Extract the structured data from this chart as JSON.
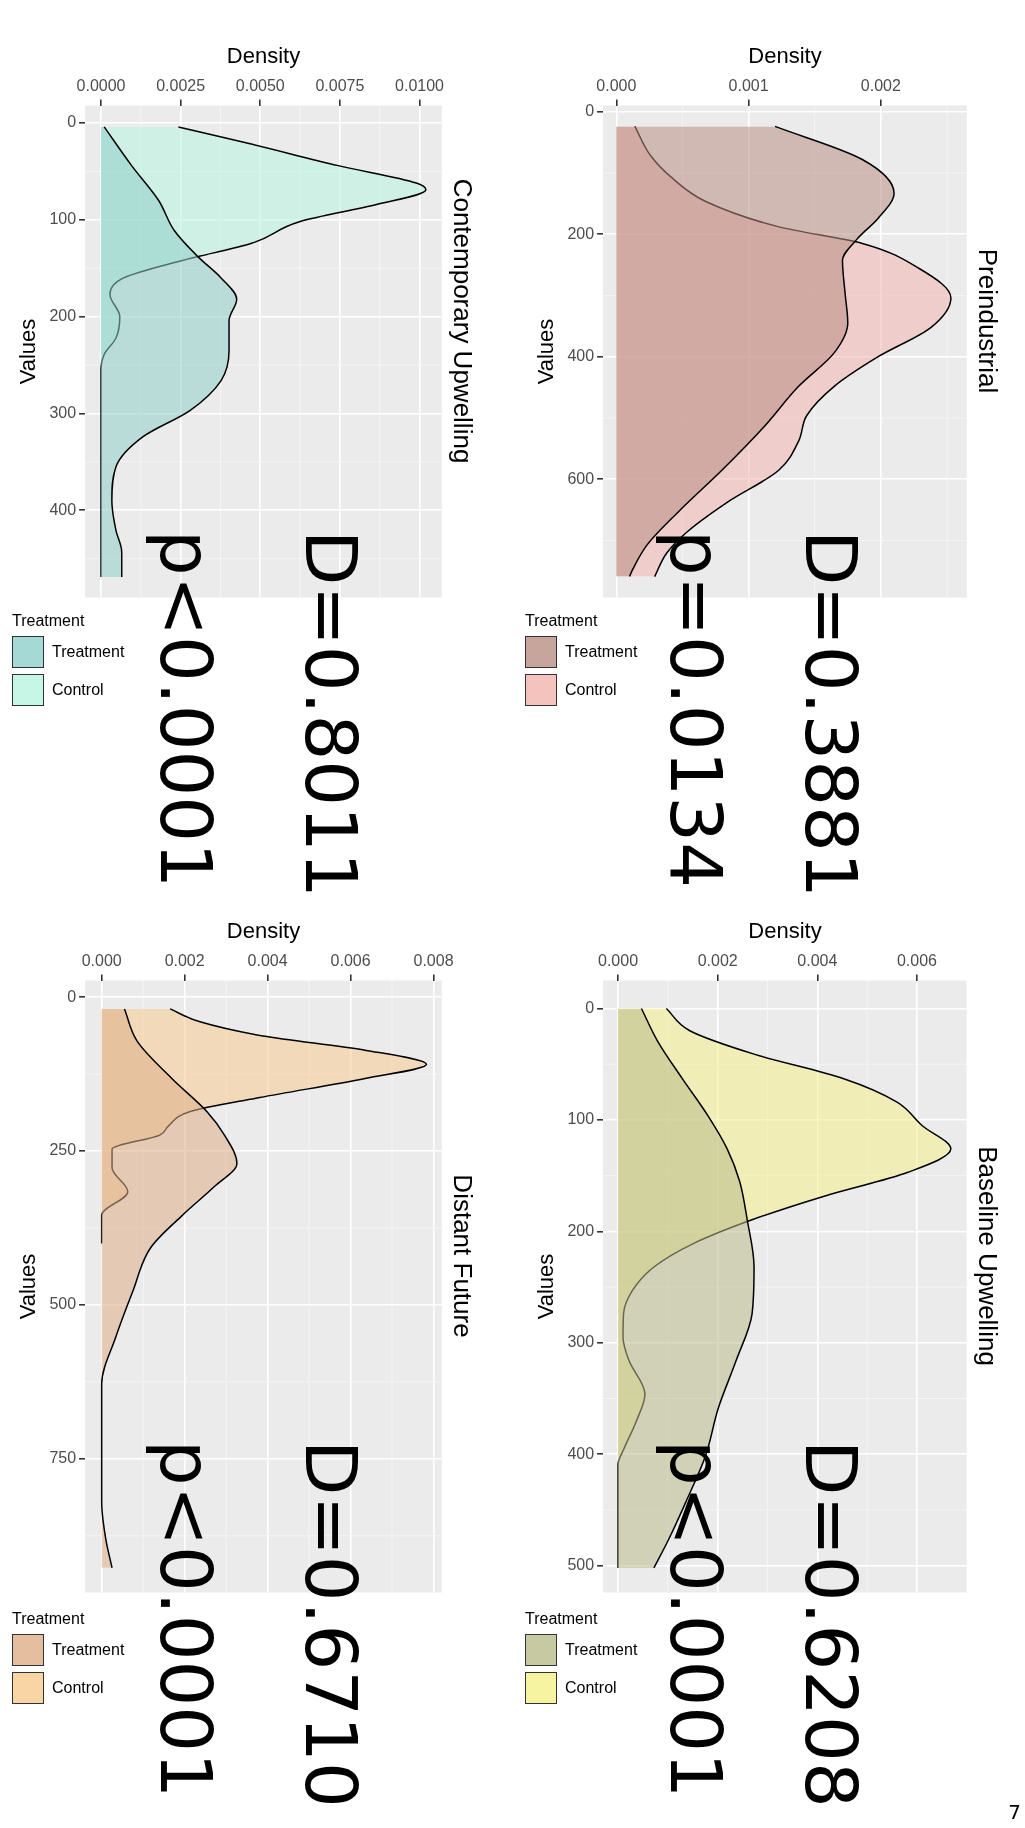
{
  "chart_data": [
    {
      "type": "area",
      "orientation": "horizontal",
      "title": "Preindustrial",
      "xlabel": "Density",
      "ylabel": "Values",
      "legend_title": "Treatment",
      "legend": "bottom",
      "grid": true,
      "ylim": [
        793,
        -10
      ],
      "yticks": [
        0,
        200,
        400,
        600
      ],
      "xlim": [
        -0.0001,
        0.00265
      ],
      "xticks": [
        {
          "value": 0,
          "label": "0.000"
        },
        {
          "value": 0.001,
          "label": "0.001"
        },
        {
          "value": 0.002,
          "label": "0.002"
        }
      ],
      "series": [
        {
          "name": "Treatment",
          "color": "#b98e85",
          "x": [
            24,
            78,
            133,
            174,
            208,
            243,
            297,
            345,
            393,
            448,
            516,
            585,
            653,
            708,
            749,
            759
          ],
          "values": [
            0.0012,
            0.00186,
            0.0021,
            0.00198,
            0.00182,
            0.00171,
            0.00173,
            0.00175,
            0.00165,
            0.00138,
            0.00111,
            0.0008,
            0.00047,
            0.00023,
            0.00012,
            0.0001
          ]
        },
        {
          "name": "Control",
          "color": "#f2b4ae",
          "x": [
            24,
            72,
            106,
            147,
            188,
            215,
            256,
            304,
            352,
            400,
            448,
            496,
            537,
            585,
            639,
            687,
            721,
            759
          ],
          "values": [
            0.00014,
            0.00026,
            0.00041,
            0.00068,
            0.00123,
            0.00186,
            0.00229,
            0.00253,
            0.00238,
            0.00198,
            0.00165,
            0.00144,
            0.00138,
            0.00123,
            0.00083,
            0.00053,
            0.00038,
            0.00029
          ]
        }
      ],
      "annotations": [
        "D=0.3881",
        "p=0.0134"
      ]
    },
    {
      "type": "area",
      "orientation": "horizontal",
      "title": "Baseline Upwelling",
      "xlabel": "Density",
      "ylabel": "Values",
      "legend_title": "Treatment",
      "legend": "bottom",
      "grid": true,
      "ylim": [
        524,
        -25
      ],
      "yticks": [
        0,
        100,
        200,
        300,
        400,
        500
      ],
      "xlim": [
        -0.0003,
        0.007
      ],
      "xticks": [
        {
          "value": 0,
          "label": "0.000"
        },
        {
          "value": 0.002,
          "label": "0.002"
        },
        {
          "value": 0.004,
          "label": "0.004"
        },
        {
          "value": 0.006,
          "label": "0.006"
        }
      ],
      "series": [
        {
          "name": "Treatment",
          "color": "#b9bc8b",
          "x": [
            0,
            29,
            63,
            96,
            126,
            155,
            189,
            232,
            274,
            316,
            359,
            401,
            443,
            477,
            502
          ],
          "values": [
            0.00047,
            0.00079,
            0.00129,
            0.0018,
            0.00219,
            0.00244,
            0.00259,
            0.00273,
            0.00269,
            0.00237,
            0.00201,
            0.00176,
            0.00136,
            0.00101,
            0.00072
          ]
        },
        {
          "name": "Control",
          "color": "#f4f08a",
          "x": [
            0,
            20,
            41,
            63,
            84,
            105,
            126,
            147,
            168,
            189,
            211,
            232,
            253,
            274,
            295,
            316,
            346,
            371,
            396,
            409,
            502
          ],
          "values": [
            0.00097,
            0.00144,
            0.00273,
            0.00453,
            0.0056,
            0.0061,
            0.00668,
            0.00582,
            0.00417,
            0.00273,
            0.00151,
            0.00072,
            0.00029,
            0.00011,
            0.0001,
            0.00022,
            0.00054,
            0.00036,
            0.00011,
            0,
            0
          ]
        }
      ],
      "annotations": [
        "D=0.6208",
        "p<0.0001"
      ]
    },
    {
      "type": "area",
      "orientation": "horizontal",
      "title": "Contemporary Upwelling",
      "xlabel": "Density",
      "ylabel": "Values",
      "legend_title": "Treatment",
      "legend": "bottom",
      "grid": true,
      "ylim": [
        490,
        -18
      ],
      "yticks": [
        0,
        100,
        200,
        300,
        400
      ],
      "xlim": [
        -0.0005,
        0.0107
      ],
      "xticks": [
        {
          "value": 0,
          "label": "0.0000"
        },
        0.0025,
        {
          "value": 0.005,
          "label": "0.0050"
        },
        0.0075,
        {
          "value": 0.01,
          "label": "0.0100"
        }
      ],
      "series": [
        {
          "name": "Treatment",
          "color": "#8fcfcb",
          "x": [
            4,
            44,
            80,
            111,
            138,
            160,
            182,
            204,
            235,
            266,
            297,
            324,
            355,
            390,
            421,
            443,
            469
          ],
          "values": [
            0.0001,
            0.00096,
            0.00181,
            0.0023,
            0.00304,
            0.00377,
            0.00426,
            0.00402,
            0.00402,
            0.00377,
            0.00279,
            0.00132,
            0.00047,
            0.00034,
            0.00047,
            0.00065,
            0.00065
          ]
        },
        {
          "name": "Control",
          "color": "#b8f4e0",
          "x": [
            4,
            22,
            44,
            62,
            69,
            84,
            102,
            124,
            142,
            160,
            177,
            200,
            222,
            239,
            253,
            469
          ],
          "values": [
            0.00243,
            0.00475,
            0.00745,
            0.0099,
            0.0102,
            0.00868,
            0.00623,
            0.00475,
            0.00255,
            0.00071,
            0.00028,
            0.00059,
            0.00047,
            0.0001,
            0,
            0
          ]
        }
      ],
      "annotations": [
        "D=0.8011",
        "p<0.0001"
      ]
    },
    {
      "type": "area",
      "orientation": "horizontal",
      "title": "Distant Future",
      "xlabel": "Density",
      "ylabel": "Values",
      "legend_title": "Treatment",
      "legend": "bottom",
      "grid": true,
      "ylim": [
        967,
        -27
      ],
      "yticks": [
        0,
        250,
        500,
        750
      ],
      "xlim": [
        -0.0004,
        0.0082
      ],
      "xticks": [
        {
          "value": 0,
          "label": "0.000"
        },
        {
          "value": 0.002,
          "label": "0.002"
        },
        {
          "value": 0.004,
          "label": "0.004"
        },
        {
          "value": 0.006,
          "label": "0.006"
        },
        {
          "value": 0.008,
          "label": "0.008"
        }
      ],
      "series": [
        {
          "name": "Treatment",
          "color": "#deae88",
          "x": [
            19,
            71,
            132,
            186,
            224,
            270,
            308,
            354,
            407,
            476,
            552,
            629,
            705,
            820,
            881,
            927
          ],
          "values": [
            0.00055,
            0.00085,
            0.00169,
            0.00254,
            0.00296,
            0.00326,
            0.00271,
            0.00195,
            0.00118,
            0.00076,
            0.00034,
            0,
            0,
            0,
            0.0001,
            0.00025
          ]
        },
        {
          "name": "Control",
          "color": "#f8ca90",
          "x": [
            19,
            40,
            63,
            86,
            109,
            132,
            163,
            186,
            209,
            224,
            247,
            277,
            316,
            354,
            400
          ],
          "values": [
            0.00165,
            0.00237,
            0.00389,
            0.00635,
            0.00783,
            0.00635,
            0.00381,
            0.00212,
            0.00161,
            0.0014,
            0.00025,
            0.00025,
            0.00063,
            0,
            0
          ]
        }
      ],
      "annotations": [
        "D=0.6710",
        "p<0.0001",
        "7"
      ]
    }
  ]
}
